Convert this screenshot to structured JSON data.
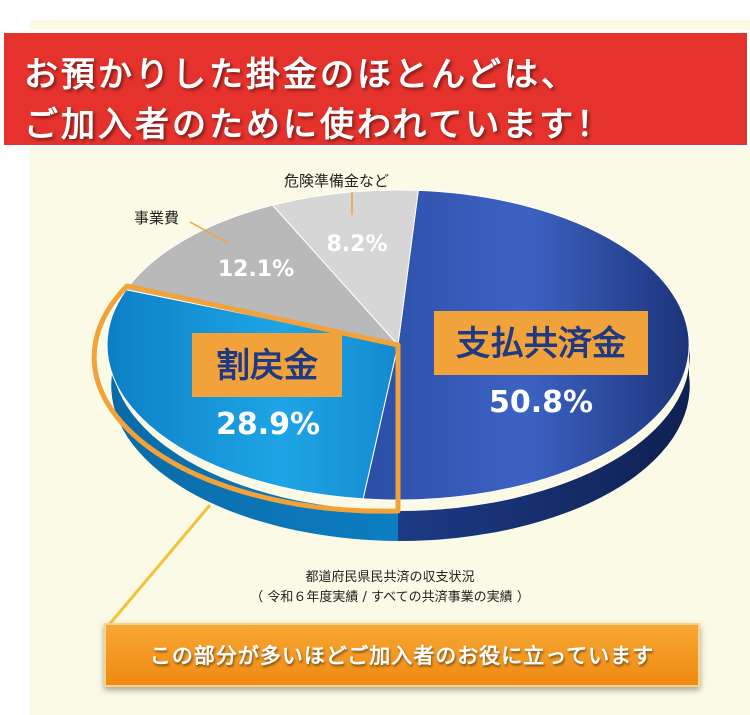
{
  "headline": {
    "line1": "お預かりした掛金のほとんどは、",
    "line2": "ご加入者のために使われています！"
  },
  "chart_data": {
    "type": "pie",
    "slices": [
      {
        "label": "支払共済金",
        "value": 50.8,
        "value_label": "50.8%",
        "color": "#3d62c4"
      },
      {
        "label": "割戻金",
        "value": 28.9,
        "value_label": "28.9%",
        "color": "#1ea5e6"
      },
      {
        "label": "事業費",
        "value": 12.1,
        "value_label": "12.1%",
        "color": "#b9b9b9"
      },
      {
        "label": "危険準備金など",
        "value": 8.2,
        "value_label": "8.2%",
        "color": "#d6d6d6"
      }
    ],
    "highlight_color": "#f2a23a"
  },
  "source": {
    "line1": "都道府民県民共済の収支状況",
    "line2": "（ 令和６年度実績 / すべての共済事業の実績 ）"
  },
  "callout": "この部分が多いほどご加入者のお役に立っています"
}
